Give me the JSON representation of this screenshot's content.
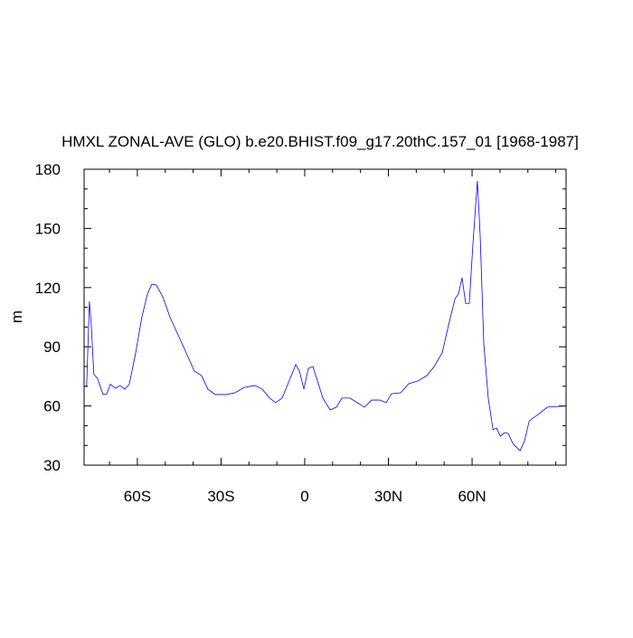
{
  "chart_data": {
    "type": "line",
    "title": "HMXL ZONAL-AVE (GLO) b.e20.BHIST.f09_g17.20thC.157_01 [1968-1987]",
    "y_label": "m",
    "x": [
      -78.2,
      -77.2,
      -76.5,
      -75.6,
      -74.3,
      -72.3,
      -71.0,
      -69.7,
      -67.8,
      -66.2,
      -64.5,
      -62.9,
      -60.6,
      -58.4,
      -56.4,
      -54.8,
      -53.2,
      -50.9,
      -48.3,
      -45.4,
      -42.5,
      -39.6,
      -37.0,
      -34.7,
      -32.1,
      -28.2,
      -25.0,
      -21.7,
      -17.8,
      -15.2,
      -12.6,
      -10.4,
      -8.1,
      -5.5,
      -3.2,
      -1.9,
      -0.3,
      1.3,
      2.9,
      4.5,
      6.5,
      9.1,
      11.4,
      13.3,
      16.2,
      18.8,
      21.4,
      24.0,
      26.9,
      29.2,
      31.1,
      34.4,
      37.3,
      40.6,
      43.8,
      46.4,
      49.3,
      51.9,
      53.9,
      55.1,
      56.4,
      57.7,
      59.0,
      60.3,
      61.9,
      62.9,
      64.2,
      65.8,
      67.5,
      68.8,
      70.1,
      71.7,
      73.0,
      74.6,
      76.2,
      77.2,
      78.8,
      80.5,
      83.7,
      87.0,
      93.7
    ],
    "series": [
      {
        "name": "HMXL",
        "color": "#0000ff",
        "values": [
          69.5,
          113,
          100.6,
          76,
          74,
          65.8,
          66,
          71,
          69,
          70.4,
          68.5,
          71,
          87,
          105,
          116.7,
          121.7,
          121.3,
          115.3,
          105,
          96,
          87,
          77.7,
          75.4,
          68.5,
          65.8,
          65.8,
          66.7,
          69.4,
          70.4,
          68.5,
          64,
          61.7,
          64,
          73,
          81,
          77.7,
          68.5,
          79,
          80,
          73,
          64,
          58,
          59.4,
          64,
          64,
          61.7,
          59.4,
          63,
          63,
          61.7,
          66.2,
          66.7,
          71.3,
          72.7,
          75.4,
          80,
          87,
          103,
          114.4,
          116.7,
          125,
          112,
          112,
          142,
          174,
          146.5,
          91.5,
          64,
          48,
          48.8,
          44.7,
          46.5,
          46,
          41,
          38.7,
          37.3,
          42.3,
          52.5,
          55.7,
          59.4,
          60
        ]
      }
    ],
    "xlim": [
      -79.1,
      93.7
    ],
    "ylim": [
      30,
      180
    ],
    "xticks": [
      {
        "value": -60,
        "label": "60S"
      },
      {
        "value": -30,
        "label": "30S"
      },
      0,
      {
        "value": 30,
        "label": "30N"
      },
      {
        "value": 60,
        "label": "60N"
      }
    ],
    "yticks": [
      30,
      60,
      90,
      120,
      150,
      180
    ],
    "xminorticks": [
      -70,
      -50,
      -40,
      -20,
      -10,
      10,
      20,
      40,
      50,
      70,
      80,
      90
    ],
    "yminorticks": [
      40,
      50,
      70,
      80,
      100,
      110,
      130,
      140,
      160,
      170
    ]
  }
}
